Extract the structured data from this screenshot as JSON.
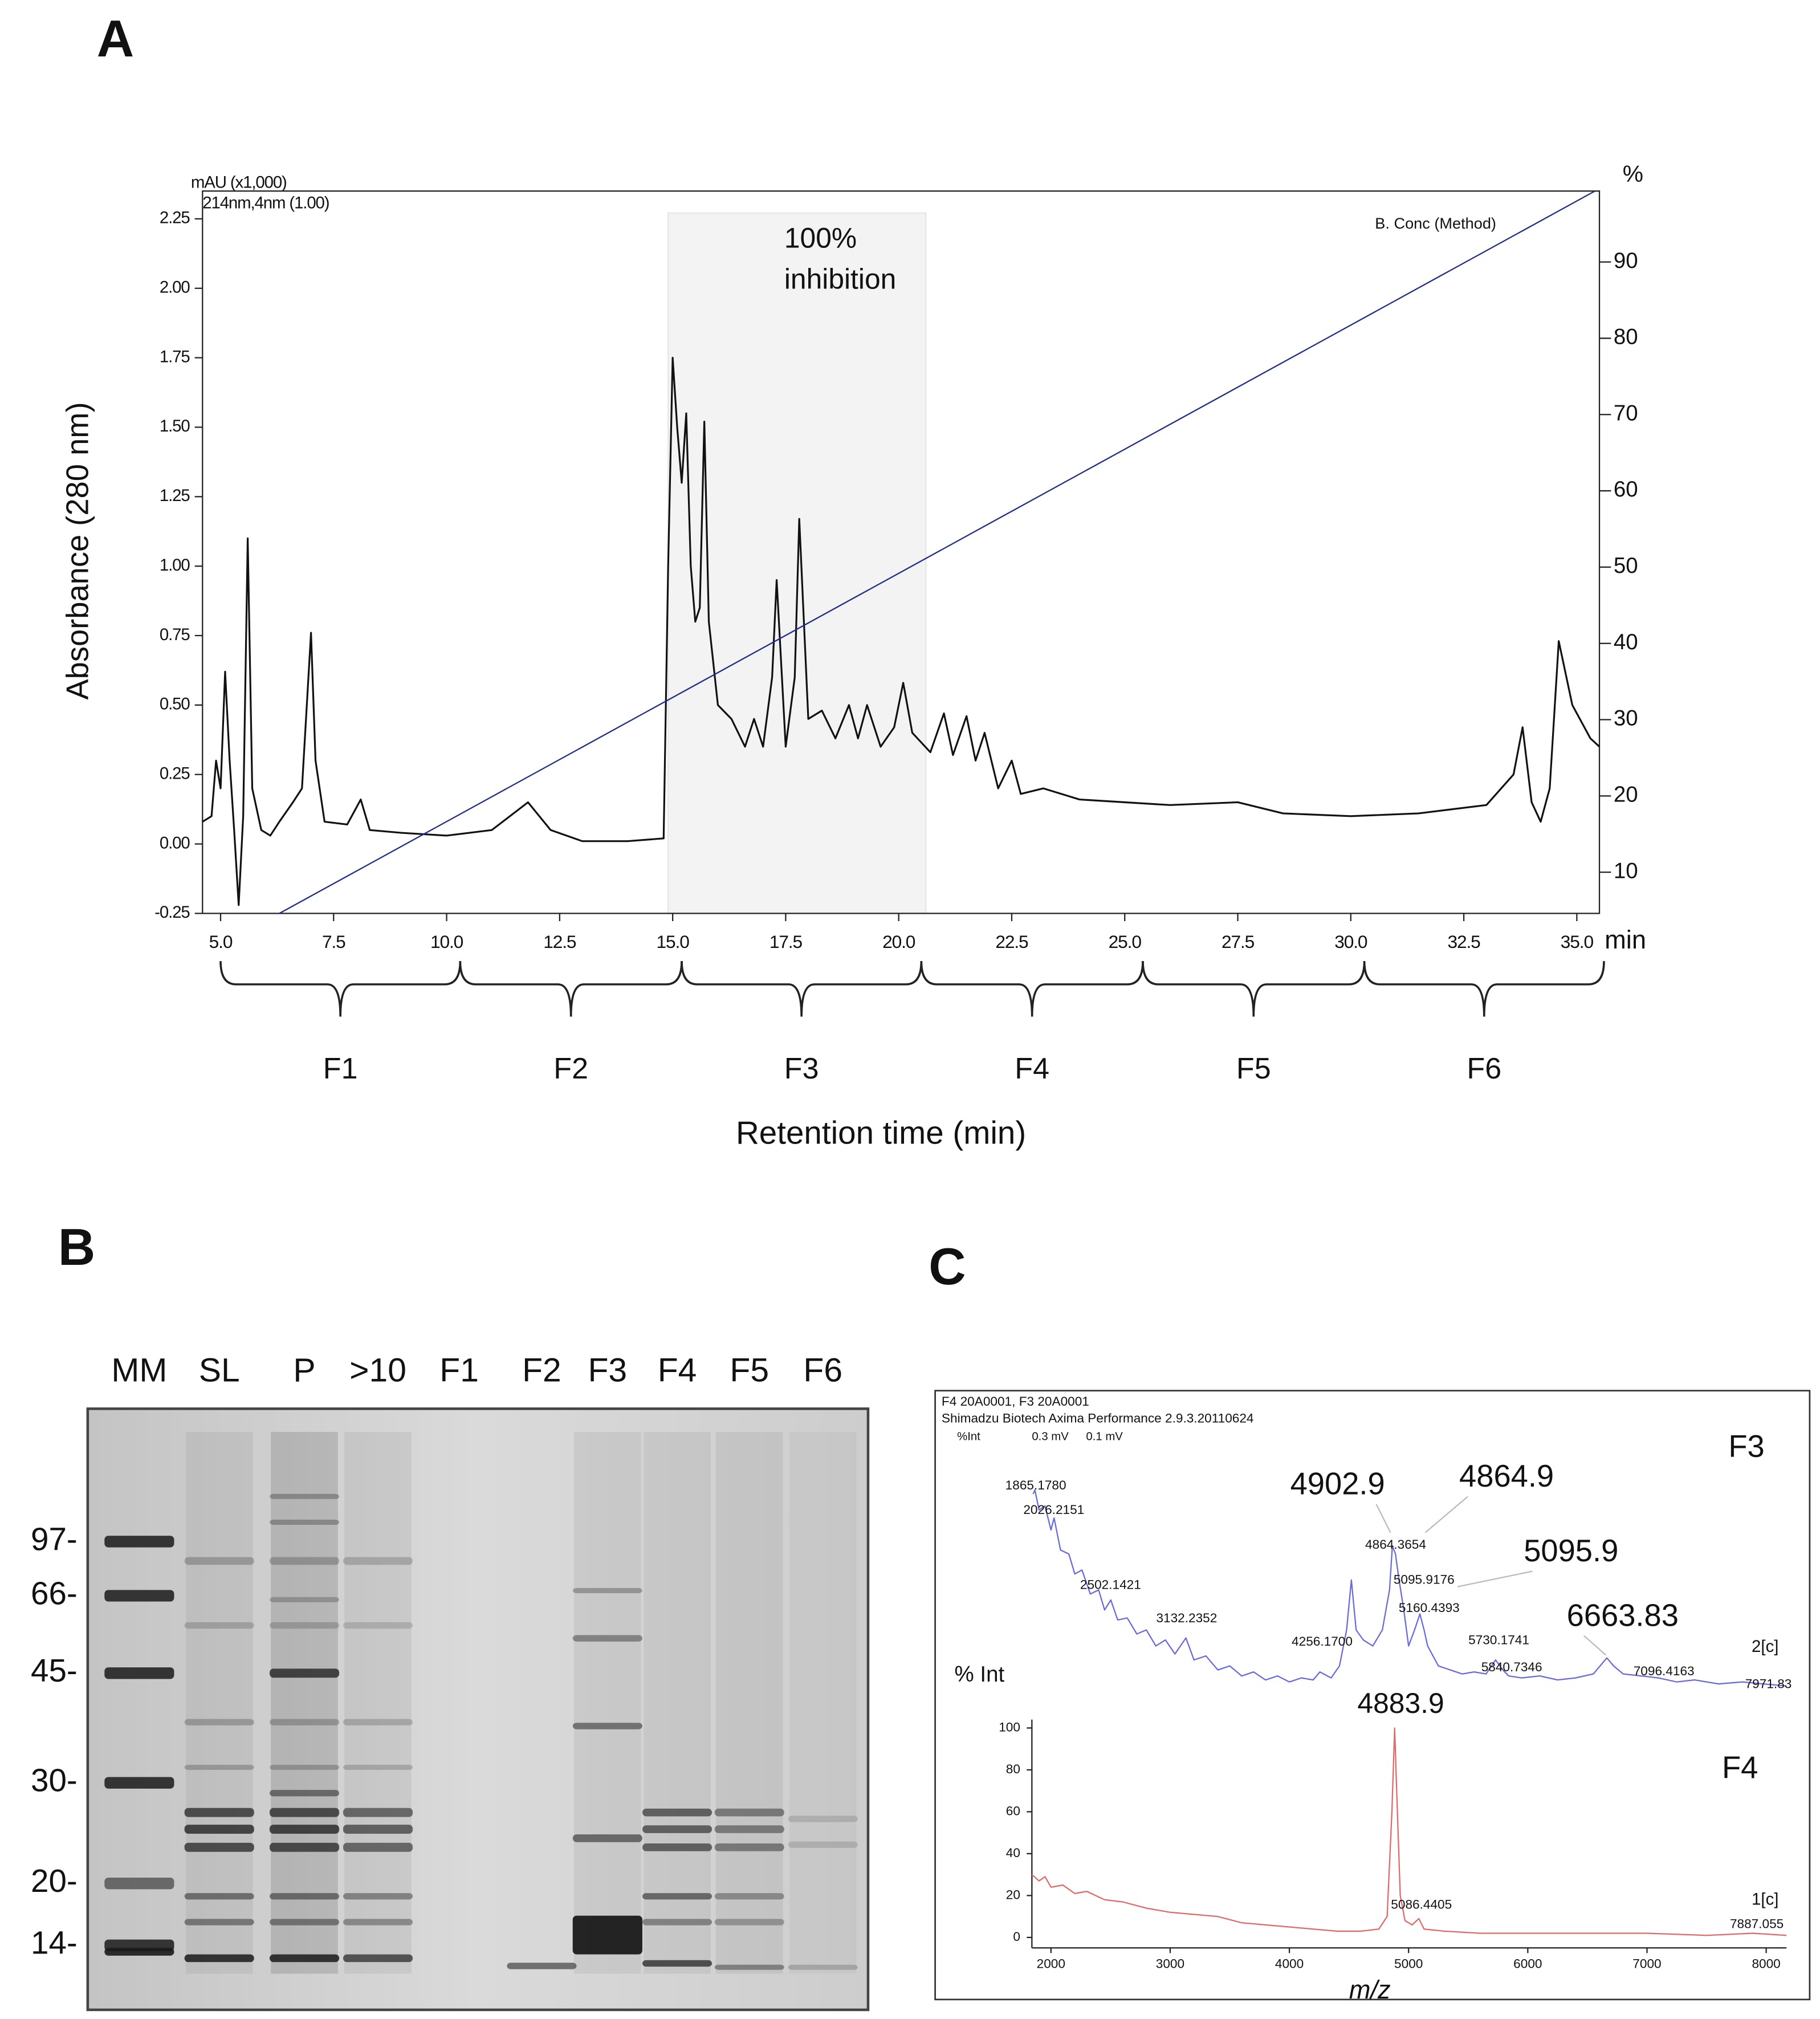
{
  "panel_labels": [
    "A",
    "B",
    "C"
  ],
  "chart_data": [
    {
      "type": "line",
      "y_label": "Absorbance (280 nm)",
      "x_label": "Retention time (min)",
      "y_unit_label": "mAU (x1,000)",
      "channel_label": "214nm,4nm (1.00)",
      "y2_label": "%",
      "x_unit_label": "min",
      "xlim": [
        4.6,
        35.5
      ],
      "ylim": [
        -0.25,
        2.35
      ],
      "y2lim": [
        4.6,
        99.3
      ],
      "xticks": [
        {
          "value": 5,
          "label": "5.0"
        },
        7.5,
        {
          "value": 10,
          "label": "10.0"
        },
        12.5,
        {
          "value": 15,
          "label": "15.0"
        },
        17.5,
        {
          "value": 20,
          "label": "20.0"
        },
        22.5,
        {
          "value": 25,
          "label": "25.0"
        },
        27.5,
        {
          "value": 30,
          "label": "30.0"
        },
        32.5,
        {
          "value": 35,
          "label": "35.0"
        }
      ],
      "yticks": [
        -0.25,
        {
          "value": 0,
          "label": "0.00"
        },
        0.25,
        {
          "value": 0.5,
          "label": "0.50"
        },
        0.75,
        {
          "value": 1,
          "label": "1.00"
        },
        1.25,
        {
          "value": 1.5,
          "label": "1.50"
        },
        1.75,
        {
          "value": 2,
          "label": "2.00"
        },
        2.25
      ],
      "y2ticks": [
        10,
        20,
        30,
        40,
        50,
        60,
        70,
        80,
        90
      ],
      "series": [
        {
          "color": "#111111",
          "x": [
            4.6,
            4.8,
            4.9,
            5.0,
            5.1,
            5.2,
            5.3,
            5.4,
            5.5,
            5.6,
            5.7,
            5.9,
            6.1,
            6.3,
            6.6,
            6.8,
            7.0,
            7.1,
            7.3,
            7.8,
            8.1,
            8.3,
            9.0,
            10.0,
            11.0,
            11.8,
            12.3,
            13.0,
            14.0,
            14.8,
            14.9,
            15.0,
            15.1,
            15.2,
            15.3,
            15.4,
            15.5,
            15.6,
            15.7,
            15.8,
            16.0,
            16.3,
            16.6,
            16.8,
            17.0,
            17.2,
            17.3,
            17.5,
            17.7,
            17.8,
            18.0,
            18.3,
            18.6,
            18.9,
            19.1,
            19.3,
            19.6,
            19.9,
            20.1,
            20.3,
            20.7,
            21.0,
            21.2,
            21.5,
            21.7,
            21.9,
            22.2,
            22.5,
            22.7,
            23.2,
            24.0,
            26.0,
            27.5,
            28.5,
            30.0,
            31.5,
            33.0,
            33.6,
            33.8,
            34.0,
            34.2,
            34.4,
            34.6,
            34.9,
            35.3,
            35.5
          ],
          "values": [
            0.08,
            0.1,
            0.3,
            0.2,
            0.62,
            0.3,
            0.05,
            -0.22,
            0.1,
            1.1,
            0.2,
            0.05,
            0.03,
            0.08,
            0.15,
            0.2,
            0.76,
            0.3,
            0.08,
            0.07,
            0.16,
            0.05,
            0.04,
            0.03,
            0.05,
            0.15,
            0.05,
            0.01,
            0.01,
            0.02,
            1.0,
            1.75,
            1.5,
            1.3,
            1.55,
            1.0,
            0.8,
            0.85,
            1.52,
            0.8,
            0.5,
            0.45,
            0.35,
            0.45,
            0.35,
            0.6,
            0.95,
            0.35,
            0.6,
            1.17,
            0.45,
            0.48,
            0.38,
            0.5,
            0.38,
            0.5,
            0.35,
            0.42,
            0.58,
            0.4,
            0.33,
            0.47,
            0.32,
            0.46,
            0.3,
            0.4,
            0.2,
            0.3,
            0.18,
            0.2,
            0.16,
            0.14,
            0.15,
            0.11,
            0.1,
            0.11,
            0.14,
            0.25,
            0.42,
            0.15,
            0.08,
            0.2,
            0.73,
            0.5,
            0.38,
            0.35
          ]
        },
        {
          "name": "B. Conc (Method)",
          "color": "#1f2a8a",
          "axis": "y2",
          "x": [
            6.3,
            35.4
          ],
          "values": [
            4.6,
            99.3
          ]
        }
      ],
      "highlight": {
        "start": 14.9,
        "end": 20.6,
        "label_lines": [
          "100%",
          "inhibition"
        ]
      },
      "fractions": [
        {
          "label": "F1",
          "start": 5.0,
          "end": 10.3
        },
        {
          "label": "F2",
          "start": 10.3,
          "end": 15.2
        },
        {
          "label": "F3",
          "start": 15.2,
          "end": 20.5
        },
        {
          "label": "F4",
          "start": 20.5,
          "end": 25.4
        },
        {
          "label": "F5",
          "start": 25.4,
          "end": 30.3
        },
        {
          "label": "F6",
          "start": 30.3,
          "end": 35.6
        }
      ]
    },
    {
      "type": "line",
      "header": [
        "F4 20A0001, F3 20A0001",
        "Shimadzu Biotech Axima Performance 2.9.3.20110624"
      ],
      "intensity_label": "%Int",
      "channel_labels": [
        "0.3 mV",
        "0.1 mV"
      ],
      "panel_label": "F3",
      "trace_label": "2[c]",
      "xlim": [
        1840,
        8170
      ],
      "ylim": [
        0,
        100
      ],
      "series": [
        {
          "color": "#6a6ad8",
          "x": [
            1850,
            1865,
            1900,
            1950,
            2000,
            2026,
            2080,
            2150,
            2200,
            2260,
            2330,
            2400,
            2450,
            2502,
            2560,
            2640,
            2720,
            2800,
            2880,
            2960,
            3040,
            3132,
            3200,
            3300,
            3400,
            3500,
            3600,
            3700,
            3800,
            3900,
            4000,
            4100,
            4200,
            4256,
            4350,
            4420,
            4480,
            4520,
            4560,
            4620,
            4700,
            4780,
            4840,
            4864,
            4890,
            4920,
            4960,
            5000,
            5050,
            5095,
            5130,
            5160,
            5250,
            5350,
            5450,
            5550,
            5650,
            5730,
            5790,
            5840,
            5950,
            6100,
            6250,
            6400,
            6550,
            6663,
            6720,
            6800,
            6950,
            7096,
            7250,
            7400,
            7600,
            7800,
            7971,
            8170
          ],
          "values": [
            98,
            100,
            90,
            92,
            80,
            86,
            70,
            68,
            58,
            60,
            48,
            50,
            40,
            45,
            35,
            36,
            28,
            30,
            22,
            25,
            18,
            26,
            15,
            17,
            10,
            12,
            7,
            9,
            5,
            7,
            4,
            6,
            5,
            9,
            6,
            12,
            30,
            55,
            30,
            25,
            22,
            30,
            50,
            72,
            68,
            55,
            40,
            22,
            30,
            38,
            30,
            22,
            12,
            10,
            8,
            9,
            8,
            15,
            10,
            7,
            6,
            7,
            5,
            6,
            8,
            16,
            12,
            8,
            7,
            6,
            4,
            5,
            3,
            4,
            3,
            2
          ]
        }
      ],
      "annotations": [
        "1865.1780",
        "2026.2151",
        "2502.1421",
        "3132.2352",
        "4256.1700",
        "4864.3654",
        "5095.9176",
        "5160.4393",
        "5730.1741",
        "5840.7346",
        "7096.4163",
        "7971.83"
      ],
      "callouts": [
        "4902.9",
        "4864.9",
        "5095.9",
        "6663.83"
      ]
    },
    {
      "type": "line",
      "y_label": "% Int",
      "x_label": "m/z",
      "panel_label": "F4",
      "trace_label": "1[c]",
      "xlim": [
        1840,
        8170
      ],
      "ylim": [
        -5,
        104
      ],
      "xticks": [
        2000,
        3000,
        4000,
        5000,
        6000,
        7000,
        8000
      ],
      "yticks": [
        0,
        20,
        40,
        60,
        80,
        100
      ],
      "series": [
        {
          "color": "#e06a6a",
          "x": [
            1840,
            1900,
            1950,
            2000,
            2100,
            2200,
            2300,
            2450,
            2600,
            2800,
            3000,
            3200,
            3400,
            3600,
            3800,
            4000,
            4200,
            4400,
            4600,
            4750,
            4820,
            4860,
            4883,
            4900,
            4930,
            4970,
            5030,
            5086,
            5130,
            5300,
            5600,
            6000,
            6500,
            7000,
            7500,
            7887,
            8170
          ],
          "values": [
            30,
            27,
            29,
            24,
            25,
            21,
            22,
            18,
            17,
            14,
            12,
            11,
            10,
            7,
            6,
            5,
            4,
            3,
            3,
            4,
            10,
            60,
            100,
            70,
            20,
            8,
            6,
            9,
            4,
            3,
            2,
            2,
            2,
            2,
            1,
            2,
            1
          ]
        }
      ],
      "annotations": [
        "5086.4405",
        "7887.055"
      ],
      "callouts": [
        "4883.9"
      ]
    }
  ],
  "gel": {
    "lanes": [
      "MM",
      "SL",
      "P",
      ">10",
      "F1",
      "F2",
      "F3",
      "F4",
      "F5",
      "F6"
    ],
    "markers": [
      "97-",
      "66-",
      "45-",
      "30-",
      "20-",
      "14-"
    ]
  }
}
